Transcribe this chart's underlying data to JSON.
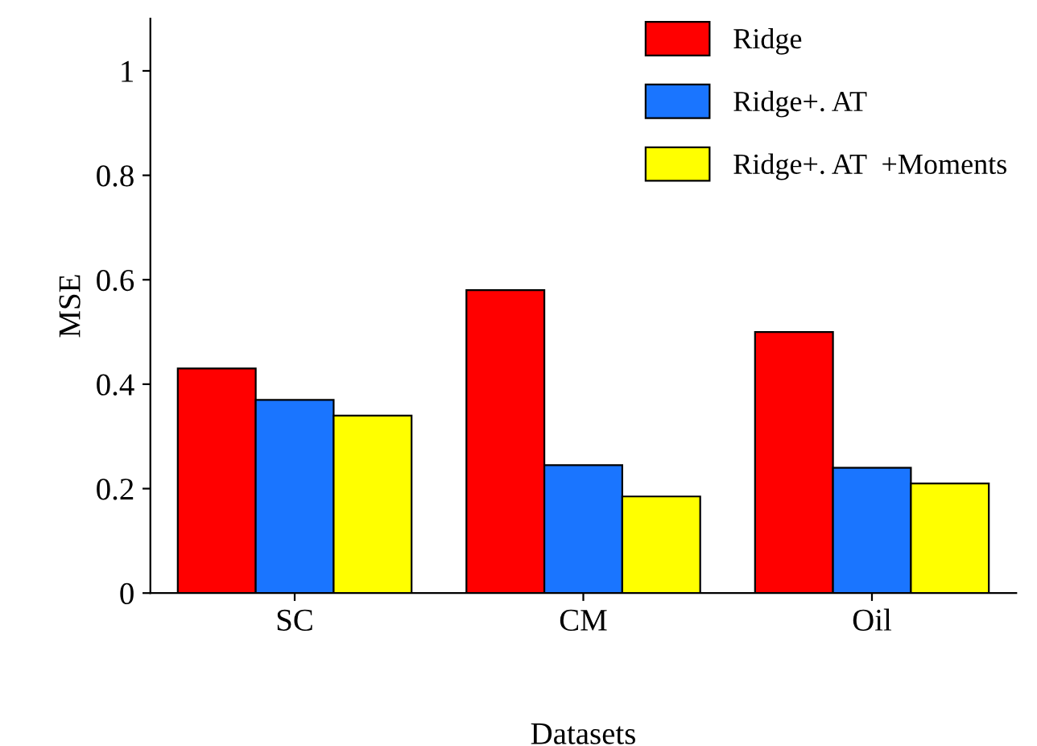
{
  "chart_data": {
    "type": "bar",
    "xlabel": "Datasets",
    "ylabel": "MSE",
    "categories": [
      "SC",
      "CM",
      "Oil"
    ],
    "series": [
      {
        "name": "Ridge",
        "color": "#ff0000",
        "values": [
          0.43,
          0.58,
          0.5
        ]
      },
      {
        "name": "Ridge+. AT",
        "color": "#1a75ff",
        "values": [
          0.37,
          0.245,
          0.24
        ]
      },
      {
        "name": "Ridge+. AT  +Moments",
        "color": "#ffff00",
        "values": [
          0.34,
          0.185,
          0.21
        ]
      }
    ],
    "ylim": [
      0,
      1.1
    ],
    "yticks": [
      0,
      0.2,
      0.4,
      0.6,
      0.8,
      1
    ],
    "grid": false,
    "legend": "top right"
  }
}
